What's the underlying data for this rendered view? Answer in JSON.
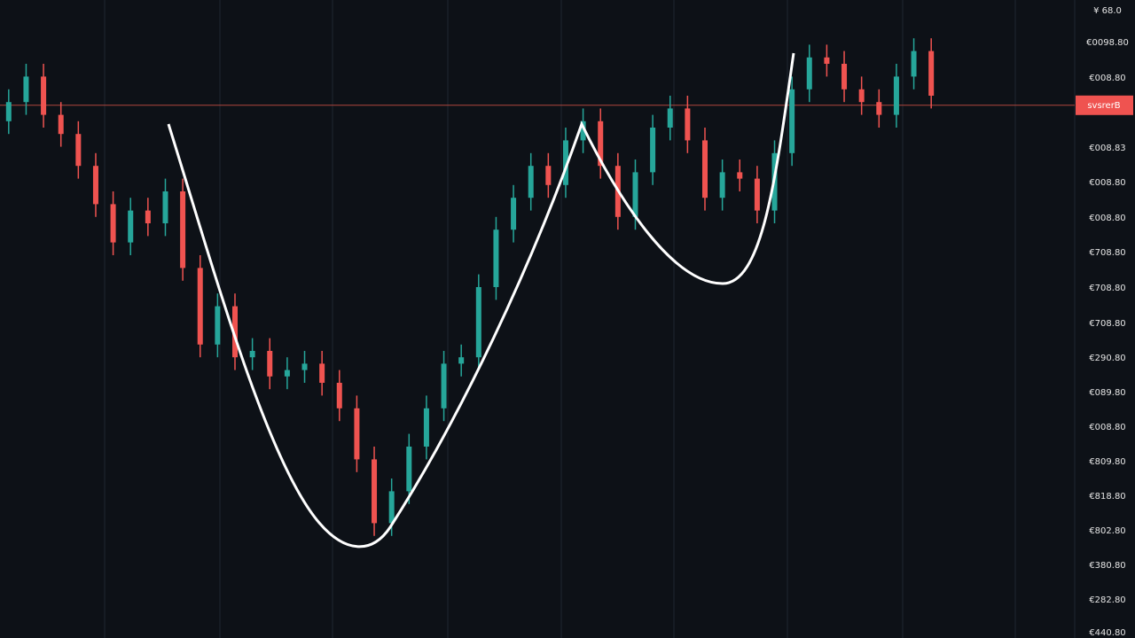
{
  "chart_data": {
    "type": "candlestick",
    "open": [
      81,
      84,
      88,
      82,
      79,
      74,
      68,
      62,
      67,
      65,
      70,
      58,
      46,
      52,
      44,
      45,
      41,
      42,
      43,
      40,
      36,
      28,
      18,
      23,
      30,
      36,
      43,
      44,
      55,
      64,
      69,
      74,
      71,
      78,
      81,
      74,
      66,
      73,
      80,
      83,
      78,
      69,
      73,
      72,
      67,
      76,
      86,
      91,
      90,
      86,
      84,
      82,
      88,
      92
    ],
    "high": [
      86,
      90,
      90,
      84,
      81,
      76,
      70,
      69,
      69,
      72,
      72,
      60,
      54,
      54,
      47,
      47,
      44,
      45,
      45,
      42,
      38,
      30,
      25,
      32,
      38,
      45,
      46,
      57,
      66,
      71,
      76,
      76,
      80,
      83,
      83,
      76,
      75,
      82,
      85,
      85,
      80,
      75,
      75,
      74,
      78,
      88,
      93,
      93,
      92,
      88,
      86,
      90,
      94,
      94
    ],
    "low": [
      79,
      82,
      80,
      77,
      72,
      66,
      60,
      60,
      63,
      63,
      56,
      44,
      44,
      42,
      42,
      39,
      39,
      40,
      38,
      34,
      26,
      16,
      16,
      21,
      28,
      34,
      41,
      42,
      53,
      62,
      67,
      69,
      69,
      76,
      72,
      64,
      64,
      71,
      78,
      76,
      67,
      67,
      70,
      65,
      65,
      74,
      84,
      88,
      84,
      82,
      80,
      80,
      86,
      83
    ],
    "close": [
      84,
      88,
      82,
      79,
      74,
      68,
      62,
      67,
      65,
      70,
      58,
      46,
      52,
      44,
      45,
      41,
      42,
      43,
      40,
      36,
      28,
      18,
      23,
      30,
      36,
      43,
      44,
      55,
      64,
      69,
      74,
      71,
      78,
      81,
      74,
      66,
      73,
      80,
      83,
      78,
      69,
      73,
      72,
      67,
      76,
      86,
      91,
      90,
      86,
      84,
      82,
      88,
      92,
      85
    ],
    "up_color": "#26a69a",
    "down_color": "#ef5350",
    "ylim": [
      0,
      100
    ],
    "price_line": 83.5,
    "price_tag": "svsrerB",
    "axis_labels": [
      "¥ 68.0",
      "€0098.80",
      "€008.80",
      "€008.83",
      "€008.80",
      "€008.80",
      "€708.80",
      "€708.80",
      "€708.80",
      "€290.80",
      "€089.80",
      "€008.80",
      "€809.80",
      "€818.80",
      "€802.80",
      "€380.80",
      "€282.80",
      "€440.80"
    ]
  }
}
